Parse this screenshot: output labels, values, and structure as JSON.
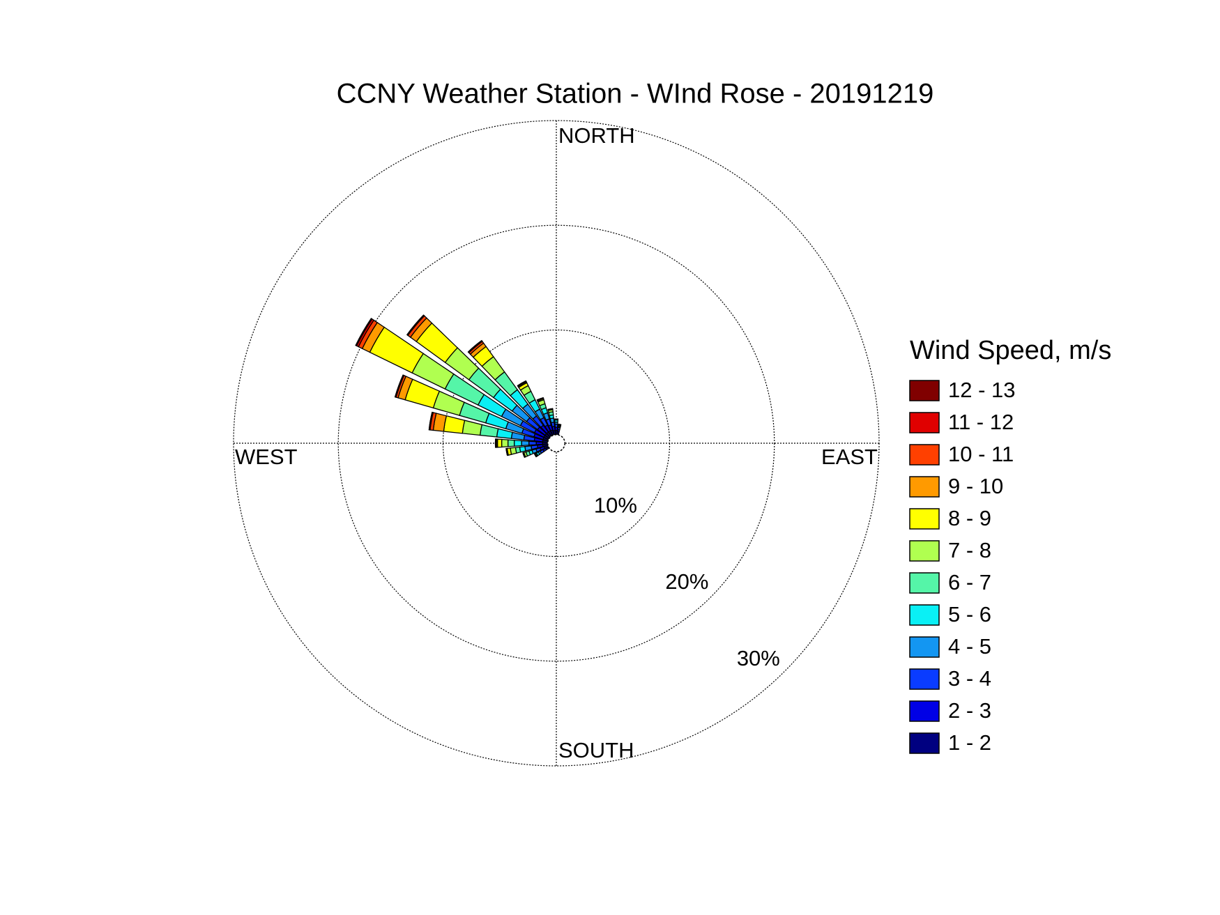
{
  "chart_data": {
    "type": "windrose",
    "title": "CCNY Weather Station - WInd Rose - 20191219",
    "legend_title": "Wind Speed, m/s",
    "direction_labels": [
      "NORTH",
      "EAST",
      "SOUTH",
      "WEST"
    ],
    "directions": [
      240,
      250,
      260,
      270,
      280,
      290,
      300,
      310,
      320,
      330,
      340,
      350,
      0,
      10
    ],
    "rlim": [
      0,
      30
    ],
    "rticks": [
      {
        "value": 10,
        "label": "10%"
      },
      {
        "value": 20,
        "label": "20%"
      },
      {
        "value": 30,
        "label": "30%"
      }
    ],
    "grid": true,
    "series": [
      {
        "name": "1 - 2",
        "color": "#000080",
        "values": [
          0.3,
          0.4,
          0.5,
          0.5,
          0.5,
          0.5,
          0.5,
          0.5,
          0.5,
          0.5,
          0.5,
          0.4,
          0.4,
          0.3
        ]
      },
      {
        "name": "2 - 3",
        "color": "#0000e6",
        "values": [
          0.3,
          0.4,
          0.5,
          0.6,
          0.8,
          0.9,
          1.0,
          0.9,
          0.8,
          0.6,
          0.5,
          0.4,
          0.3,
          0.2
        ]
      },
      {
        "name": "3 - 4",
        "color": "#0a3cff",
        "values": [
          0.3,
          0.4,
          0.6,
          0.7,
          1.0,
          1.2,
          1.5,
          1.3,
          1.1,
          0.8,
          0.6,
          0.4,
          0.3,
          0.2
        ]
      },
      {
        "name": "4 - 5",
        "color": "#1396f2",
        "values": [
          0.2,
          0.4,
          0.6,
          0.7,
          1.2,
          1.6,
          2.0,
          1.7,
          1.4,
          0.9,
          0.6,
          0.4,
          0.2,
          0.1
        ]
      },
      {
        "name": "5 - 6",
        "color": "#0af0f5",
        "values": [
          0.2,
          0.3,
          0.5,
          0.7,
          1.4,
          2.0,
          2.5,
          2.2,
          1.7,
          1.0,
          0.5,
          0.3,
          0.2,
          0.1
        ]
      },
      {
        "name": "6 - 7",
        "color": "#55f5a8",
        "values": [
          0.1,
          0.3,
          0.4,
          0.6,
          1.6,
          2.6,
          3.5,
          2.9,
          2.1,
          0.9,
          0.4,
          0.3,
          0.1,
          0.1
        ]
      },
      {
        "name": "7 - 8",
        "color": "#b0ff50",
        "values": [
          0.1,
          0.2,
          0.5,
          0.6,
          1.7,
          2.6,
          3.5,
          2.8,
          1.8,
          0.6,
          0.4,
          0.2,
          0,
          0
        ]
      },
      {
        "name": "8 - 9",
        "color": "#ffff00",
        "values": [
          0,
          0.1,
          0.3,
          0.4,
          1.8,
          2.8,
          4.5,
          3.4,
          1.2,
          0.3,
          0.1,
          0.1,
          0,
          0
        ]
      },
      {
        "name": "9 - 10",
        "color": "#ff9a00",
        "values": [
          0,
          0,
          0.1,
          0.1,
          1.0,
          0.7,
          0.8,
          0.7,
          0.4,
          0.1,
          0.1,
          0,
          0,
          0
        ]
      },
      {
        "name": "10 - 11",
        "color": "#ff4000",
        "values": [
          0,
          0,
          0,
          0.1,
          0.3,
          0.2,
          0.4,
          0.3,
          0.2,
          0.1,
          0,
          0,
          0,
          0
        ]
      },
      {
        "name": "11 - 12",
        "color": "#e00000",
        "values": [
          0,
          0,
          0,
          0,
          0.1,
          0.1,
          0.2,
          0.1,
          0.1,
          0,
          0,
          0,
          0,
          0
        ]
      },
      {
        "name": "12 - 13",
        "color": "#800000",
        "values": [
          0,
          0,
          0,
          0,
          0,
          0,
          0.1,
          0,
          0,
          0,
          0,
          0,
          0,
          0
        ]
      }
    ]
  }
}
